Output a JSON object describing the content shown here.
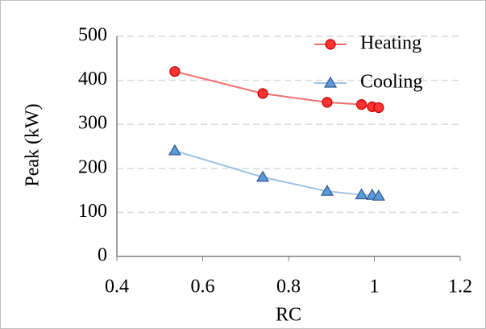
{
  "chart_data": {
    "type": "line",
    "x_label": "RC",
    "y_label": "Peak (kW)",
    "x": [
      0.535,
      0.74,
      0.89,
      0.97,
      0.995,
      1.01
    ],
    "series": [
      {
        "name": "Heating",
        "color": "#f07070",
        "marker": "circle",
        "marker_fill": "#ff3333",
        "marker_edge": "#c00000",
        "values": [
          420,
          370,
          350,
          345,
          340,
          338
        ]
      },
      {
        "name": "Cooling",
        "color": "#9dc3e6",
        "marker": "triangle",
        "marker_fill": "#5b9bd5",
        "marker_edge": "#2f5597",
        "values": [
          240,
          180,
          148,
          140,
          139,
          137
        ]
      }
    ],
    "xlim": [
      0.4,
      1.2
    ],
    "xticks": [
      0.4,
      0.6,
      0.8,
      1,
      1.2
    ],
    "ylim": [
      0,
      500
    ],
    "yticks": [
      0,
      100,
      200,
      300,
      400,
      500
    ],
    "grid": true,
    "legend": "top-right"
  }
}
